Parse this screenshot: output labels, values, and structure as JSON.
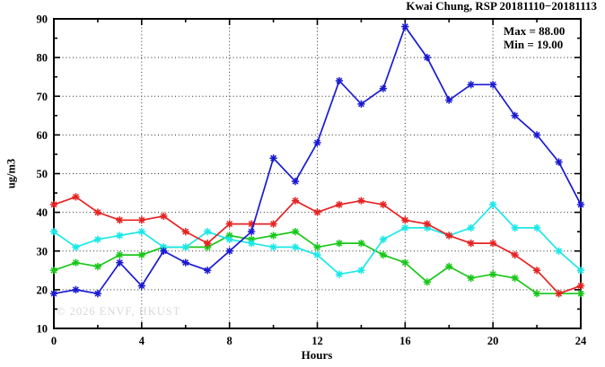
{
  "watermark": "© 2026 ENVF, HKUST",
  "chart_data": {
    "type": "line",
    "title": "Kwai Chung, RSP 20181110−20181113",
    "xlabel": "Hours",
    "ylabel": "ug/m3",
    "xlim": [
      0,
      24
    ],
    "ylim": [
      10,
      90
    ],
    "xticks": [
      0,
      4,
      8,
      12,
      16,
      20,
      24
    ],
    "xticks_minor": [
      2,
      6,
      10,
      14,
      18,
      22
    ],
    "yticks": [
      10,
      20,
      30,
      40,
      50,
      60,
      70,
      80,
      90
    ],
    "yticks_minor": [
      15,
      25,
      35,
      45,
      55,
      65,
      75,
      85
    ],
    "grid_x": [
      4,
      8,
      12,
      16,
      20
    ],
    "grid_y": [
      20,
      30,
      40,
      50,
      60,
      70,
      80
    ],
    "grid_style": "dotted",
    "legend": "none",
    "marker": "asterisk",
    "x": [
      0,
      1,
      2,
      3,
      4,
      5,
      6,
      7,
      8,
      9,
      10,
      11,
      12,
      13,
      14,
      15,
      16,
      17,
      18,
      19,
      20,
      21,
      22,
      23,
      24
    ],
    "series": [
      {
        "name": "blue-series",
        "color": "#1a1ad2",
        "values": [
          19,
          20,
          19,
          27,
          21,
          30,
          27,
          25,
          30,
          35,
          54,
          48,
          58,
          74,
          68,
          72,
          88,
          80,
          69,
          73,
          73,
          65,
          60,
          53,
          42
        ]
      },
      {
        "name": "red-series",
        "color": "#e62222",
        "values": [
          42,
          44,
          40,
          38,
          38,
          39,
          35,
          32,
          37,
          37,
          37,
          43,
          40,
          42,
          43,
          42,
          38,
          37,
          34,
          32,
          32,
          29,
          25,
          19,
          21
        ]
      },
      {
        "name": "cyan-series",
        "color": "#1ae8e8",
        "values": [
          35,
          31,
          33,
          34,
          35,
          31,
          31,
          35,
          33,
          32,
          31,
          31,
          29,
          24,
          25,
          33,
          36,
          36,
          34,
          36,
          42,
          36,
          36,
          30,
          25
        ]
      },
      {
        "name": "green-series",
        "color": "#18c818",
        "values": [
          25,
          27,
          26,
          29,
          29,
          31,
          31,
          31,
          34,
          33,
          34,
          35,
          31,
          32,
          32,
          29,
          27,
          22,
          26,
          23,
          24,
          23,
          19,
          19,
          19
        ]
      }
    ],
    "annotations": {
      "max_label": "Max = 88.00",
      "min_label": "Min = 19.00",
      "max_value": 88.0,
      "min_value": 19.0
    }
  }
}
